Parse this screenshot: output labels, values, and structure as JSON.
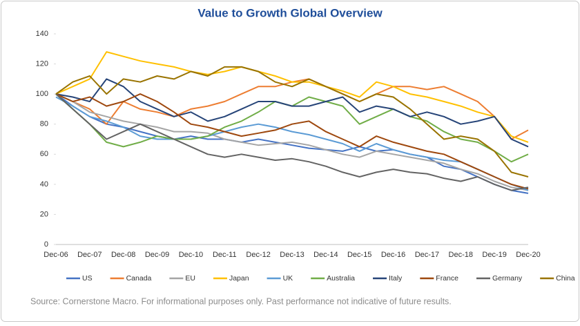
{
  "chart_data": {
    "type": "line",
    "title": "Value to Growth Global Overview",
    "source": "Source: Cornerstone Macro. For informational purposes only. Past performance not indicative of future results.",
    "categories": [
      "Dec-06",
      null,
      "Dec-07",
      null,
      "Dec-08",
      null,
      "Dec-09",
      null,
      "Dec-10",
      null,
      "Dec-11",
      null,
      "Dec-12",
      null,
      "Dec-13",
      null,
      "Dec-14",
      null,
      "Dec-15",
      null,
      "Dec-16",
      null,
      "Dec-17",
      null,
      "Dec-18",
      null,
      "Dec-19",
      null,
      "Dec-20"
    ],
    "ylim": [
      0,
      140
    ],
    "yticks": [
      0,
      20,
      40,
      60,
      80,
      100,
      120,
      140
    ],
    "grid": false,
    "legend": "bottom",
    "series": [
      {
        "name": "US",
        "color": "#4472c4",
        "values": [
          100,
          92,
          85,
          80,
          78,
          75,
          72,
          70,
          72,
          70,
          70,
          68,
          70,
          68,
          66,
          64,
          63,
          62,
          65,
          62,
          63,
          60,
          58,
          52,
          50,
          45,
          40,
          36,
          34
        ]
      },
      {
        "name": "Canada",
        "color": "#ed7d31",
        "values": [
          100,
          95,
          90,
          80,
          95,
          90,
          88,
          85,
          90,
          92,
          95,
          100,
          105,
          105,
          108,
          110,
          105,
          100,
          95,
          100,
          105,
          105,
          103,
          105,
          100,
          95,
          85,
          70,
          76
        ]
      },
      {
        "name": "EU",
        "color": "#a5a5a5",
        "values": [
          100,
          95,
          88,
          85,
          82,
          80,
          78,
          75,
          75,
          74,
          70,
          68,
          66,
          67,
          68,
          66,
          63,
          60,
          58,
          62,
          60,
          58,
          56,
          54,
          50,
          47,
          42,
          38,
          36
        ]
      },
      {
        "name": "Japan",
        "color": "#ffc000",
        "values": [
          100,
          105,
          110,
          128,
          125,
          122,
          120,
          118,
          115,
          113,
          115,
          118,
          115,
          112,
          108,
          108,
          105,
          102,
          98,
          108,
          105,
          100,
          98,
          95,
          92,
          88,
          85,
          72,
          68
        ]
      },
      {
        "name": "UK",
        "color": "#5b9bd5",
        "values": [
          98,
          92,
          85,
          82,
          78,
          72,
          70,
          70,
          70,
          72,
          75,
          78,
          80,
          78,
          75,
          73,
          70,
          67,
          62,
          67,
          63,
          60,
          58,
          56,
          55,
          50,
          45,
          40,
          36
        ]
      },
      {
        "name": "Australia",
        "color": "#70ad47",
        "values": [
          100,
          90,
          80,
          68,
          65,
          68,
          72,
          70,
          70,
          72,
          78,
          82,
          88,
          95,
          92,
          98,
          95,
          92,
          80,
          85,
          90,
          85,
          82,
          75,
          70,
          68,
          62,
          55,
          60
        ]
      },
      {
        "name": "Italy",
        "color": "#264478",
        "values": [
          100,
          98,
          95,
          110,
          105,
          95,
          90,
          85,
          88,
          82,
          85,
          90,
          95,
          95,
          92,
          92,
          95,
          98,
          88,
          92,
          90,
          85,
          88,
          85,
          80,
          82,
          85,
          70,
          65
        ]
      },
      {
        "name": "France",
        "color": "#9e480e",
        "values": [
          100,
          95,
          98,
          92,
          95,
          100,
          95,
          88,
          80,
          78,
          75,
          72,
          74,
          76,
          80,
          82,
          75,
          70,
          65,
          72,
          68,
          65,
          62,
          60,
          55,
          50,
          45,
          40,
          37
        ]
      },
      {
        "name": "Germany",
        "color": "#636363",
        "values": [
          100,
          90,
          80,
          70,
          75,
          80,
          75,
          70,
          65,
          60,
          58,
          60,
          58,
          56,
          57,
          55,
          52,
          48,
          45,
          48,
          50,
          48,
          47,
          44,
          42,
          45,
          40,
          36,
          38
        ]
      },
      {
        "name": "China",
        "color": "#997300",
        "values": [
          100,
          108,
          112,
          100,
          110,
          108,
          112,
          110,
          115,
          112,
          118,
          118,
          115,
          108,
          105,
          110,
          105,
          100,
          95,
          100,
          98,
          90,
          80,
          70,
          72,
          70,
          62,
          48,
          45
        ]
      }
    ]
  }
}
